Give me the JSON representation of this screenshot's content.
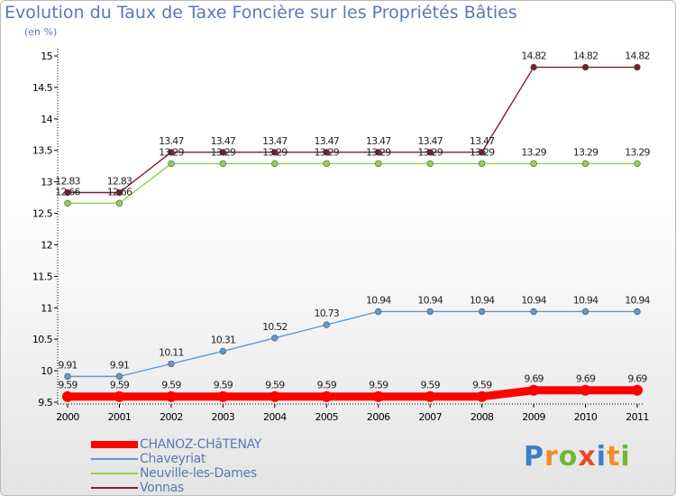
{
  "title": "Evolution du Taux de Taxe Foncière sur les Propriétés Bâties",
  "subtitle": "(en %)",
  "brand": "Proxiti",
  "chart_data": {
    "type": "line",
    "title": "Evolution du Taux de Taxe Foncière sur les Propriétés Bâties",
    "ylabel": "(en %)",
    "xlabel": "",
    "ylim": [
      9.5,
      15
    ],
    "yticks": [
      9.5,
      10,
      10.5,
      11,
      11.5,
      12,
      12.5,
      13,
      13.5,
      14,
      14.5,
      15
    ],
    "categories": [
      "2000",
      "2001",
      "2002",
      "2003",
      "2004",
      "2005",
      "2006",
      "2007",
      "2008",
      "2009",
      "2010",
      "2011"
    ],
    "grid": false,
    "series": [
      {
        "name": "Vonnas",
        "color": "#7b1f2d",
        "values": [
          12.83,
          12.83,
          13.47,
          13.47,
          13.47,
          13.47,
          13.47,
          13.47,
          13.47,
          14.82,
          14.82,
          14.82
        ],
        "labels": [
          "12.83",
          "12.83",
          "13.47",
          "13.47",
          "13.47",
          "13.47",
          "13.47",
          "13.47",
          "13.47",
          "14.82",
          "14.82",
          "14.82"
        ]
      },
      {
        "name": "Neuville-les-Dames",
        "color": "#8fd14f",
        "values": [
          12.66,
          12.66,
          13.29,
          13.29,
          13.29,
          13.29,
          13.29,
          13.29,
          13.29,
          13.29,
          13.29,
          13.29
        ],
        "labels": [
          "12.66",
          "12.66",
          "13.29",
          "13.29",
          "13.29",
          "13.29",
          "13.29",
          "13.29",
          "13.29",
          "13.29",
          "13.29",
          "13.29"
        ]
      },
      {
        "name": "Chaveyriat",
        "color": "#5b9bd5",
        "values": [
          9.91,
          9.91,
          10.11,
          10.31,
          10.52,
          10.73,
          10.94,
          10.94,
          10.94,
          10.94,
          10.94,
          10.94
        ],
        "labels": [
          "9.91",
          "9.91",
          "10.11",
          "10.31",
          "10.52",
          "10.73",
          "10.94",
          "10.94",
          "10.94",
          "10.94",
          "10.94",
          "10.94"
        ]
      },
      {
        "name": "CHANOZ-CHâTENAY",
        "color": "#ff0000",
        "values": [
          9.59,
          9.59,
          9.59,
          9.59,
          9.59,
          9.59,
          9.59,
          9.59,
          9.59,
          9.69,
          9.69,
          9.69
        ],
        "labels": [
          "9.59",
          "9.59",
          "9.59",
          "9.59",
          "9.59",
          "9.59",
          "9.59",
          "9.59",
          "9.59",
          "9.69",
          "9.69",
          "9.69"
        ]
      }
    ],
    "legend": [
      "CHANOZ-CHâTENAY",
      "Chaveyriat",
      "Neuville-les-Dames",
      "Vonnas"
    ],
    "legend_position": "bottom-left"
  }
}
